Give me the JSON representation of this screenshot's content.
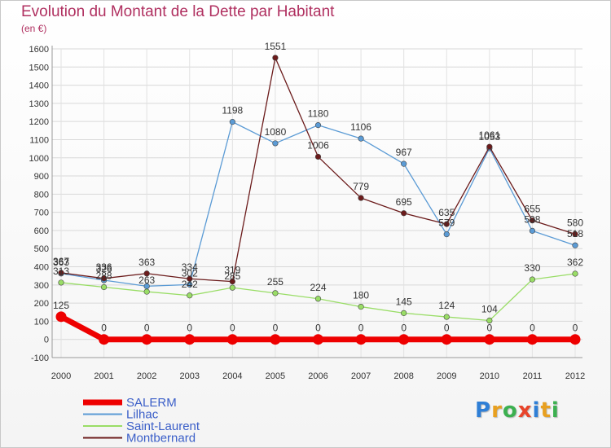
{
  "title": "Evolution du Montant de la Dette par Habitant",
  "subtitle": "(en €)",
  "logo": {
    "text": "Proxiti",
    "letter_colors": [
      "#2f7fd6",
      "#e8a020",
      "#3cb050",
      "#e8442a",
      "#2f7fd6",
      "#e8a020",
      "#3cb050"
    ]
  },
  "chart_data": {
    "type": "line",
    "categories": [
      "2000",
      "2001",
      "2002",
      "2003",
      "2004",
      "2005",
      "2006",
      "2007",
      "2008",
      "2009",
      "2010",
      "2011",
      "2012"
    ],
    "ylim": [
      -100,
      1600
    ],
    "yticks": [
      -100,
      0,
      100,
      200,
      300,
      400,
      500,
      600,
      700,
      800,
      900,
      1000,
      1100,
      1200,
      1300,
      1400,
      1500,
      1600
    ],
    "grid": true,
    "legend_position": "bottom-left",
    "series": [
      {
        "name": "SALERM",
        "color": "#ee0000",
        "values": [
          125,
          0,
          0,
          0,
          0,
          0,
          0,
          0,
          0,
          0,
          0,
          0,
          0
        ],
        "labels": [
          "125",
          "0",
          "0",
          "0",
          "0",
          "0",
          "0",
          "0",
          "0",
          "0",
          "0",
          "0",
          "0"
        ]
      },
      {
        "name": "Lilhac",
        "color": "#5b9bd5",
        "values": [
          363,
          326,
          293,
          302,
          1198,
          1080,
          1180,
          1106,
          967,
          579,
          1053,
          598,
          518
        ],
        "labels": [
          "363",
          "326",
          "",
          "302",
          "1198",
          "1080",
          "1180",
          "1106",
          "967",
          "579",
          "1053",
          "598",
          "518"
        ]
      },
      {
        "name": "Saint-Laurent",
        "color": "#99dd66",
        "values": [
          313,
          288,
          263,
          242,
          285,
          255,
          224,
          180,
          145,
          124,
          104,
          330,
          362
        ],
        "labels": [
          "313",
          "288",
          "263",
          "242",
          "285",
          "255",
          "224",
          "180",
          "145",
          "124",
          "104",
          "330",
          "362"
        ]
      },
      {
        "name": "Montbernard",
        "color": "#6b1b1b",
        "values": [
          367,
          336,
          363,
          334,
          319,
          1551,
          1006,
          779,
          695,
          635,
          1061,
          655,
          580
        ],
        "labels": [
          "367",
          "336",
          "363",
          "334",
          "319",
          "1551",
          "1006",
          "779",
          "695",
          "635",
          "1061",
          "655",
          "580"
        ]
      }
    ]
  }
}
